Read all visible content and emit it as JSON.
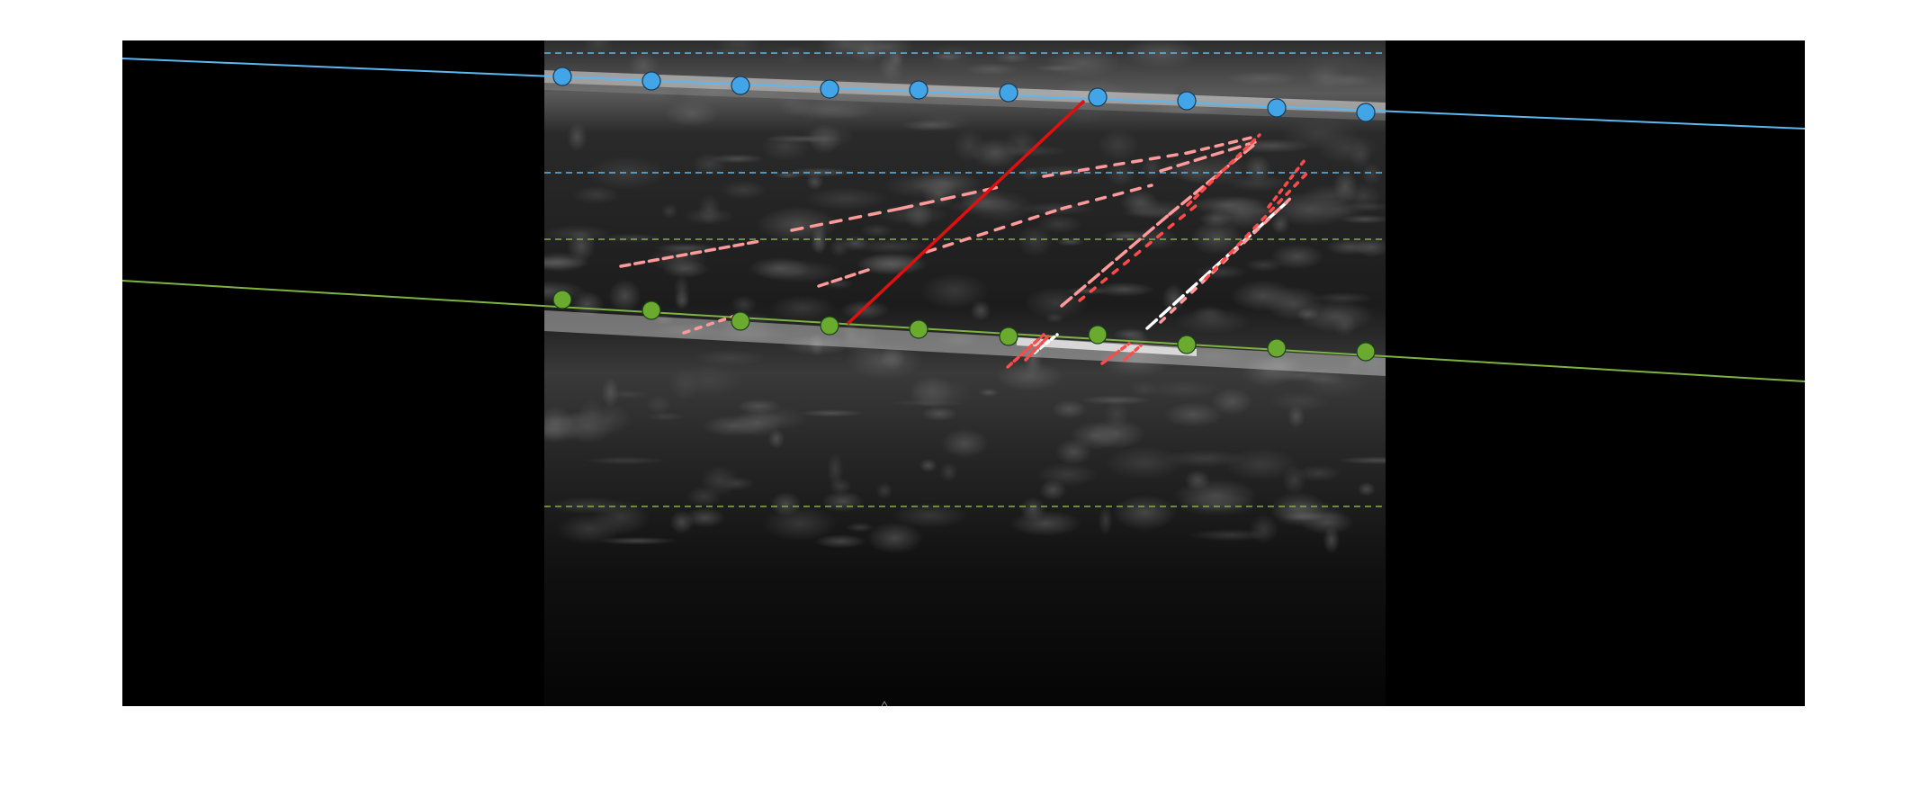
{
  "figure": {
    "background": "#ffffff",
    "frame_color": "#000000",
    "ultrasound_tones": [
      "#1a1a1a",
      "#2a2a2a",
      "#3c3c3c",
      "#5a5a5a",
      "#8a8a8a",
      "#d8d8d8"
    ]
  },
  "colors": {
    "upper_boundary": "#5bb8f0",
    "lower_boundary": "#7cb342",
    "upper_point_fill": "#42a5e8",
    "lower_point_fill": "#6aaa2e",
    "point_stroke": "#1c3f1a",
    "fascicle_fit": "#e01010",
    "fascicle_segment_red": "#ff4a4a",
    "fascicle_segment_pink": "#ff9a9a",
    "fascicle_segment_white": "#ffffff"
  },
  "annotations": {
    "upper_boundary_points": 10,
    "lower_boundary_points": 10,
    "upper_roi_guides": 2,
    "lower_roi_guides": 2,
    "fascicle_fit_lines": 1
  }
}
